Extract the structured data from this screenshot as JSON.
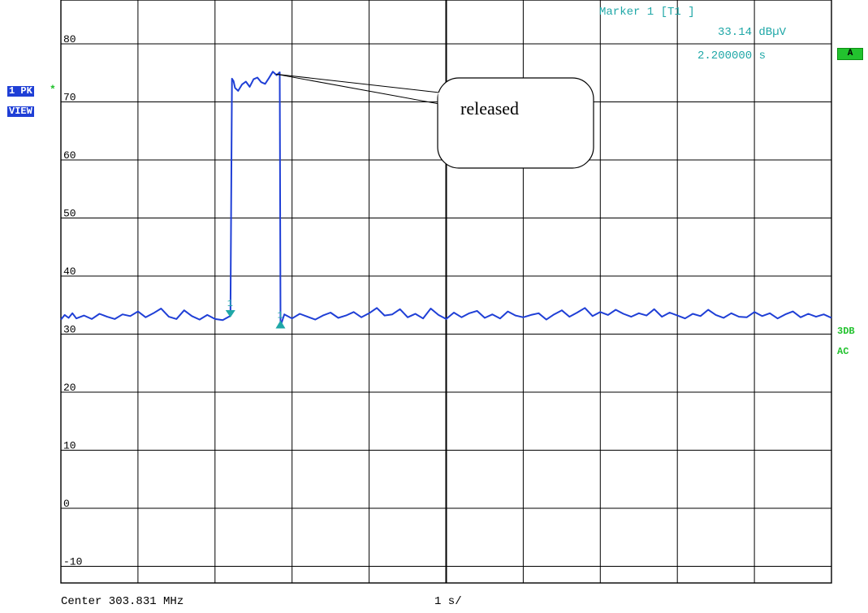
{
  "trace_badge": {
    "line1": "1 PK",
    "line2": "VIEW",
    "star": "*"
  },
  "right_labels": {
    "a_badge": "A",
    "db": "3DB",
    "ac": "AC"
  },
  "marker": {
    "title": "Marker 1 [T1 ]",
    "level": "33.14 dBµV",
    "time": "2.200000 s"
  },
  "callout": {
    "text": "released"
  },
  "footer": {
    "center": "Center 303.831 MHz",
    "span": "1 s/"
  },
  "colors": {
    "trace": "#1f3fd6",
    "marker": "#1fa7a7",
    "status": "#22c22e",
    "grid": "#000000"
  },
  "chart_data": {
    "type": "line",
    "title": "",
    "xlabel": "Center 303.831 MHz",
    "ylabel": "",
    "x_units": "s",
    "y_units": "dBµV",
    "xlim": [
      0,
      10
    ],
    "ylim": [
      -10,
      80
    ],
    "ytick_labels": [
      "80",
      "70",
      "60",
      "50",
      "40",
      "30",
      "20",
      "10",
      "0",
      "-10"
    ],
    "ytick_values": [
      80,
      70,
      60,
      50,
      40,
      30,
      20,
      10,
      0,
      -10
    ],
    "grid": true,
    "x_divisions": 10,
    "series": [
      {
        "points": [
          [
            0.0,
            32.5
          ],
          [
            0.05,
            33.3
          ],
          [
            0.1,
            32.8
          ],
          [
            0.15,
            33.6
          ],
          [
            0.2,
            32.7
          ],
          [
            0.3,
            33.2
          ],
          [
            0.4,
            32.6
          ],
          [
            0.5,
            33.5
          ],
          [
            0.6,
            33.0
          ],
          [
            0.7,
            32.6
          ],
          [
            0.8,
            33.4
          ],
          [
            0.9,
            33.1
          ],
          [
            1.0,
            33.9
          ],
          [
            1.1,
            32.9
          ],
          [
            1.2,
            33.6
          ],
          [
            1.3,
            34.4
          ],
          [
            1.4,
            33.0
          ],
          [
            1.5,
            32.6
          ],
          [
            1.6,
            34.1
          ],
          [
            1.7,
            33.1
          ],
          [
            1.8,
            32.5
          ],
          [
            1.9,
            33.3
          ],
          [
            2.0,
            32.6
          ],
          [
            2.1,
            32.4
          ],
          [
            2.2,
            33.14
          ],
          [
            2.22,
            74.0
          ],
          [
            2.24,
            73.6
          ],
          [
            2.26,
            72.4
          ],
          [
            2.3,
            71.9
          ],
          [
            2.35,
            73.0
          ],
          [
            2.4,
            73.5
          ],
          [
            2.45,
            72.6
          ],
          [
            2.5,
            73.9
          ],
          [
            2.55,
            74.2
          ],
          [
            2.6,
            73.4
          ],
          [
            2.65,
            73.1
          ],
          [
            2.7,
            74.1
          ],
          [
            2.75,
            75.2
          ],
          [
            2.8,
            74.6
          ],
          [
            2.84,
            75.1
          ],
          [
            2.85,
            31.4
          ],
          [
            2.9,
            33.4
          ],
          [
            3.0,
            32.7
          ],
          [
            3.1,
            33.5
          ],
          [
            3.2,
            33.0
          ],
          [
            3.3,
            32.5
          ],
          [
            3.4,
            33.2
          ],
          [
            3.5,
            33.7
          ],
          [
            3.6,
            32.8
          ],
          [
            3.7,
            33.2
          ],
          [
            3.8,
            33.8
          ],
          [
            3.9,
            32.9
          ],
          [
            4.0,
            33.6
          ],
          [
            4.1,
            34.5
          ],
          [
            4.2,
            33.2
          ],
          [
            4.3,
            33.4
          ],
          [
            4.4,
            34.3
          ],
          [
            4.5,
            32.9
          ],
          [
            4.6,
            33.5
          ],
          [
            4.7,
            32.7
          ],
          [
            4.8,
            34.4
          ],
          [
            4.9,
            33.3
          ],
          [
            5.0,
            32.6
          ],
          [
            5.1,
            33.7
          ],
          [
            5.2,
            32.9
          ],
          [
            5.3,
            33.6
          ],
          [
            5.4,
            34.0
          ],
          [
            5.5,
            32.8
          ],
          [
            5.6,
            33.4
          ],
          [
            5.7,
            32.7
          ],
          [
            5.8,
            33.9
          ],
          [
            5.9,
            33.2
          ],
          [
            6.0,
            32.9
          ],
          [
            6.1,
            33.3
          ],
          [
            6.2,
            33.6
          ],
          [
            6.3,
            32.5
          ],
          [
            6.4,
            33.4
          ],
          [
            6.5,
            34.1
          ],
          [
            6.6,
            33.0
          ],
          [
            6.7,
            33.7
          ],
          [
            6.8,
            34.5
          ],
          [
            6.9,
            33.1
          ],
          [
            7.0,
            33.8
          ],
          [
            7.1,
            33.3
          ],
          [
            7.2,
            34.2
          ],
          [
            7.3,
            33.5
          ],
          [
            7.4,
            33.0
          ],
          [
            7.5,
            33.6
          ],
          [
            7.6,
            33.2
          ],
          [
            7.7,
            34.3
          ],
          [
            7.8,
            33.0
          ],
          [
            7.9,
            33.7
          ],
          [
            8.0,
            33.2
          ],
          [
            8.1,
            32.7
          ],
          [
            8.2,
            33.5
          ],
          [
            8.3,
            33.1
          ],
          [
            8.4,
            34.2
          ],
          [
            8.5,
            33.3
          ],
          [
            8.6,
            32.8
          ],
          [
            8.7,
            33.6
          ],
          [
            8.8,
            33.0
          ],
          [
            8.9,
            32.9
          ],
          [
            9.0,
            33.8
          ],
          [
            9.1,
            33.1
          ],
          [
            9.2,
            33.6
          ],
          [
            9.3,
            32.7
          ],
          [
            9.4,
            33.4
          ],
          [
            9.5,
            33.9
          ],
          [
            9.6,
            32.9
          ],
          [
            9.7,
            33.5
          ],
          [
            9.8,
            33.0
          ],
          [
            9.9,
            33.4
          ],
          [
            10.0,
            32.8
          ]
        ]
      }
    ],
    "markers": [
      {
        "label": "1",
        "x": 2.2,
        "y": 33.14,
        "shape": "triangle-down"
      },
      {
        "label": "1",
        "x": 2.85,
        "y": 31.4,
        "shape": "triangle-up"
      }
    ],
    "annotations": [
      {
        "text": "released",
        "points_to": [
          2.75,
          75.2
        ]
      }
    ]
  }
}
